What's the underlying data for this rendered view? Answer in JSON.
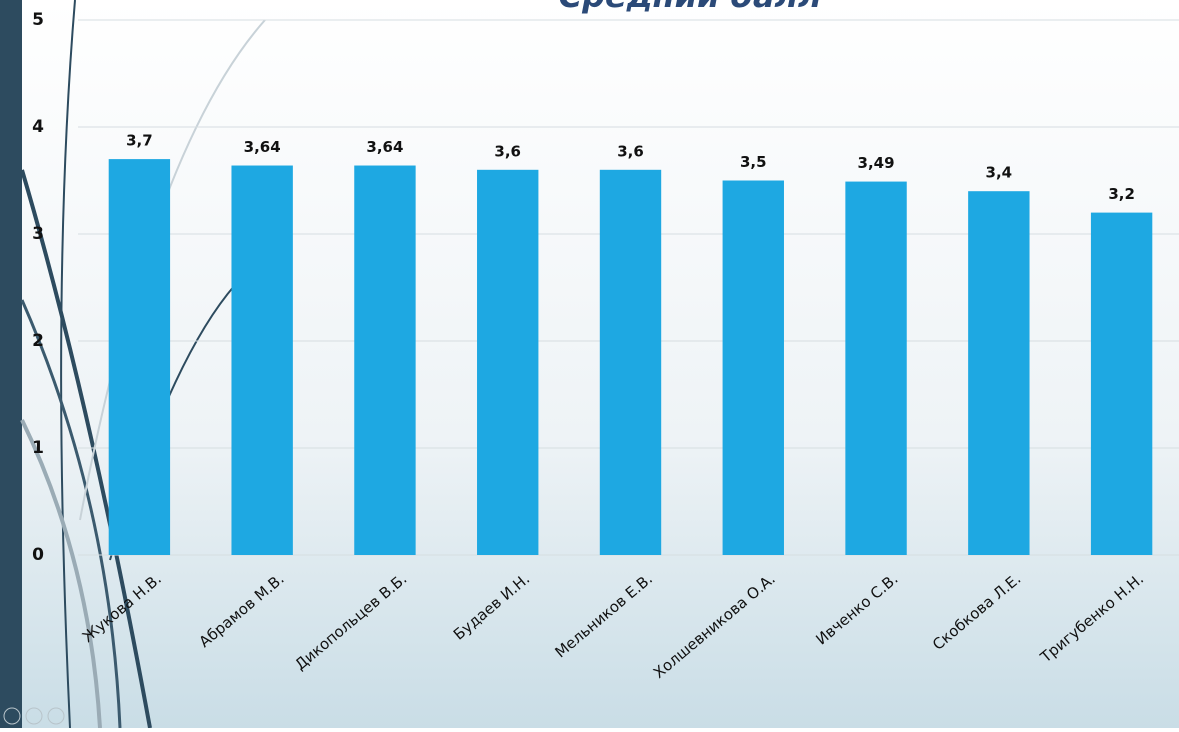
{
  "chart_data": {
    "type": "bar",
    "title": "Средний балл",
    "categories": [
      "Жукова Н.В.",
      "Абрамов М.В.",
      "Дикопольцев В.Б.",
      "Будаев И.Н.",
      "Мельников Е.В.",
      "Холшевникова О.А.",
      "Ивченко С.В.",
      "Скобкова Л.Е.",
      "Тригубенко Н.Н."
    ],
    "values": [
      3.7,
      3.64,
      3.64,
      3.6,
      3.6,
      3.5,
      3.49,
      3.4,
      3.2
    ],
    "value_labels": [
      "3,7",
      "3,64",
      "3,64",
      "3,6",
      "3,6",
      "3,5",
      "3,49",
      "3,4",
      "3,2"
    ],
    "color": "#1ea8e2",
    "ylim": [
      0,
      5
    ],
    "yticks": [
      0,
      1,
      2,
      3,
      4,
      5
    ],
    "grid": true
  }
}
